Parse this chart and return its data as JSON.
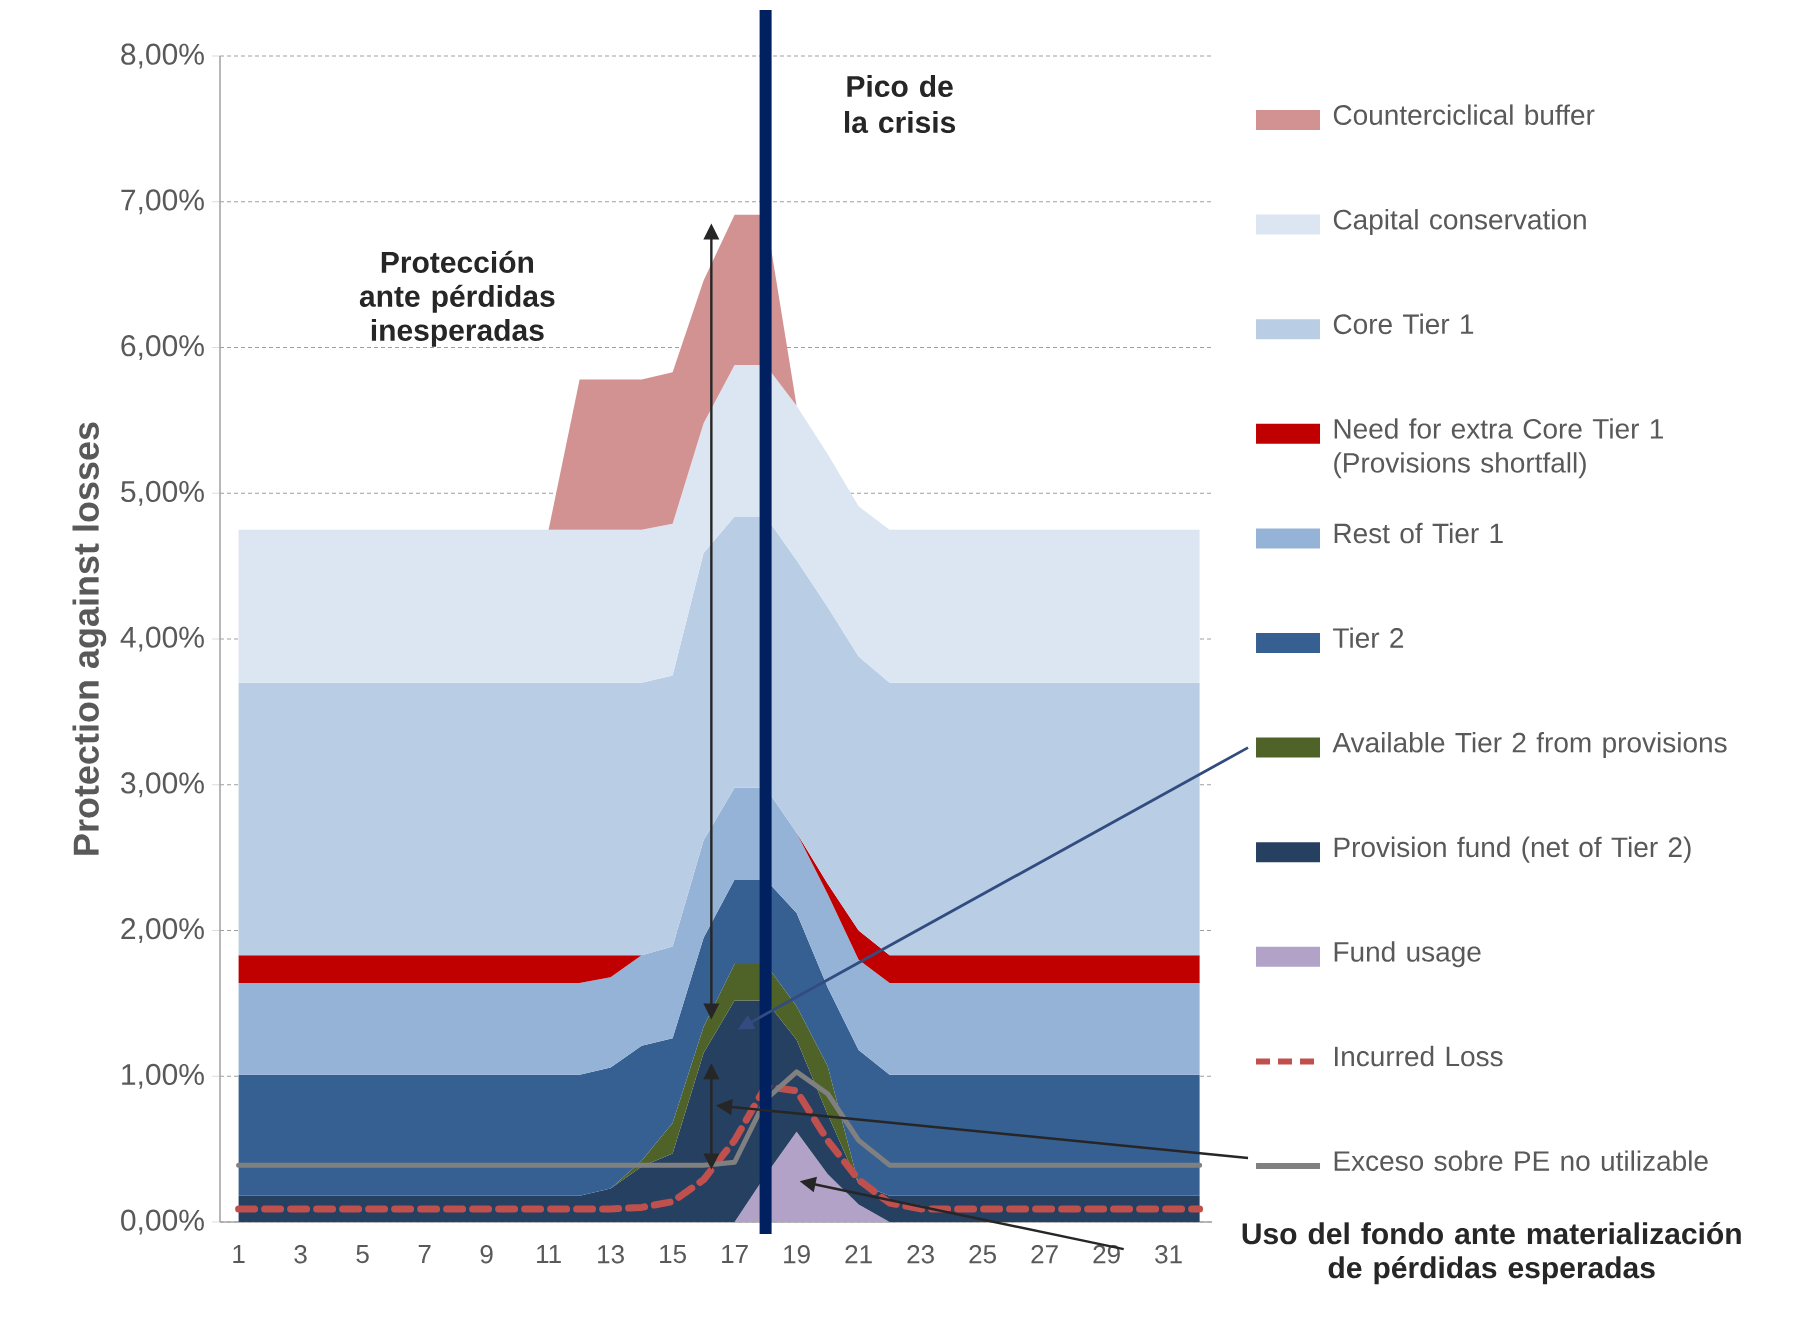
{
  "chart_data": {
    "type": "area",
    "stacked": true,
    "x": [
      1,
      2,
      3,
      4,
      5,
      6,
      7,
      8,
      9,
      10,
      11,
      12,
      13,
      14,
      15,
      16,
      17,
      18,
      19,
      20,
      21,
      22,
      23,
      24,
      25,
      26,
      27,
      28,
      29,
      30,
      31,
      32
    ],
    "series": [
      {
        "name": "Fund usage",
        "color": "#b3a2c7",
        "values": [
          null,
          null,
          null,
          null,
          null,
          null,
          null,
          null,
          null,
          null,
          null,
          null,
          null,
          null,
          null,
          null,
          0,
          0.32,
          0.62,
          0.33,
          0.12,
          0,
          null,
          null,
          null,
          null,
          null,
          null,
          null,
          null,
          null,
          null
        ]
      },
      {
        "name": "Provision fund (net of Tier 2)",
        "color": "#254061",
        "values": [
          0.18,
          0.18,
          0.18,
          0.18,
          0.18,
          0.18,
          0.18,
          0.18,
          0.18,
          0.18,
          0.18,
          0.18,
          0.23,
          0.38,
          0.47,
          1.16,
          1.52,
          1.2,
          0.63,
          0.41,
          0.14,
          0.18,
          0.18,
          0.18,
          0.18,
          0.18,
          0.18,
          0.18,
          0.18,
          0.18,
          0.18,
          0.18
        ]
      },
      {
        "name": "Available Tier 2 from provisions",
        "color": "#4f6228",
        "values": [
          null,
          null,
          null,
          null,
          null,
          null,
          null,
          null,
          null,
          null,
          null,
          null,
          0,
          0.04,
          0.21,
          0.18,
          0.25,
          0.25,
          0.23,
          0.33,
          0,
          null,
          null,
          null,
          null,
          null,
          null,
          null,
          null,
          null,
          null,
          null
        ]
      },
      {
        "name": "Tier 2",
        "color": "#376092",
        "values": [
          0.83,
          0.83,
          0.83,
          0.83,
          0.83,
          0.83,
          0.83,
          0.83,
          0.83,
          0.83,
          0.83,
          0.83,
          0.83,
          0.79,
          0.58,
          0.61,
          0.58,
          0.58,
          0.64,
          0.54,
          0.92,
          0.83,
          0.83,
          0.83,
          0.83,
          0.83,
          0.83,
          0.83,
          0.83,
          0.83,
          0.83,
          0.83
        ]
      },
      {
        "name": "Rest of Tier 1",
        "color": "#95b3d7",
        "values": [
          0.63,
          0.63,
          0.63,
          0.63,
          0.63,
          0.63,
          0.63,
          0.63,
          0.63,
          0.63,
          0.63,
          0.63,
          0.62,
          0.62,
          0.63,
          0.67,
          0.63,
          0.63,
          0.55,
          0.64,
          0.62,
          0.63,
          0.63,
          0.63,
          0.63,
          0.63,
          0.63,
          0.63,
          0.63,
          0.63,
          0.63,
          0.63
        ]
      },
      {
        "name": "Need for extra Core Tier 1 (Provisions shortfall)",
        "color": "#c00000",
        "values": [
          0.19,
          0.19,
          0.19,
          0.19,
          0.19,
          0.19,
          0.19,
          0.19,
          0.19,
          0.19,
          0.19,
          0.19,
          0.15,
          0,
          null,
          null,
          null,
          null,
          0,
          0.07,
          0.2,
          0.19,
          0.19,
          0.19,
          0.19,
          0.19,
          0.19,
          0.19,
          0.19,
          0.19,
          0.19,
          0.19
        ]
      },
      {
        "name": "Core Tier 1",
        "color": "#b9cde5",
        "values": [
          1.87,
          1.87,
          1.87,
          1.87,
          1.87,
          1.87,
          1.87,
          1.87,
          1.87,
          1.87,
          1.87,
          1.87,
          1.87,
          1.87,
          1.86,
          1.97,
          1.86,
          1.86,
          1.87,
          1.9,
          1.88,
          1.87,
          1.87,
          1.87,
          1.87,
          1.87,
          1.87,
          1.87,
          1.87,
          1.87,
          1.87,
          1.87
        ]
      },
      {
        "name": "Capital conservation",
        "color": "#dce6f2",
        "values": [
          1.05,
          1.05,
          1.05,
          1.05,
          1.05,
          1.05,
          1.05,
          1.05,
          1.05,
          1.05,
          1.05,
          1.05,
          1.05,
          1.05,
          1.04,
          0.89,
          1.04,
          1.04,
          1.06,
          1.05,
          1.03,
          1.05,
          1.05,
          1.05,
          1.05,
          1.05,
          1.05,
          1.05,
          1.05,
          1.05,
          1.05,
          1.05
        ]
      },
      {
        "name": "Counterciclical buffer",
        "color": "#d39292",
        "values": [
          null,
          null,
          null,
          null,
          null,
          null,
          null,
          null,
          null,
          null,
          0,
          1.03,
          1.03,
          1.03,
          1.04,
          0.98,
          1.03,
          1.03,
          0,
          null,
          null,
          null,
          null,
          null,
          null,
          null,
          null,
          null,
          null,
          null,
          null,
          null
        ]
      },
      {
        "name": "Incurred Loss",
        "type": "line",
        "line_style": "dashed",
        "color": "#c0504d",
        "values": [
          0.09,
          0.09,
          0.09,
          0.09,
          0.09,
          0.09,
          0.09,
          0.09,
          0.09,
          0.09,
          0.09,
          0.09,
          0.09,
          0.1,
          0.14,
          0.29,
          0.56,
          0.93,
          0.9,
          0.56,
          0.29,
          0.13,
          0.09,
          0.09,
          0.09,
          0.09,
          0.09,
          0.09,
          0.09,
          0.09,
          0.09,
          0.09
        ]
      },
      {
        "name": "Exceso sobre PE no utilizable",
        "type": "line",
        "line_style": "solid",
        "color": "#808080",
        "values": [
          0.39,
          0.39,
          0.39,
          0.39,
          0.39,
          0.39,
          0.39,
          0.39,
          0.39,
          0.39,
          0.39,
          0.39,
          0.39,
          0.39,
          0.39,
          0.39,
          0.41,
          0.84,
          1.03,
          0.88,
          0.56,
          0.39,
          0.39,
          0.39,
          0.39,
          0.39,
          0.39,
          0.39,
          0.39,
          0.39,
          0.39,
          0.39
        ]
      }
    ],
    "ylabel": "Protection against losses",
    "xlim": [
      0.4,
      32.4
    ],
    "xticks": [
      1,
      3,
      5,
      7,
      9,
      11,
      13,
      15,
      17,
      19,
      21,
      23,
      25,
      27,
      29,
      31
    ],
    "ylim": [
      0,
      8
    ],
    "yticks": [
      {
        "value": 0,
        "label": "0,00%"
      },
      {
        "value": 1,
        "label": "1,00%"
      },
      {
        "value": 2,
        "label": "2,00%"
      },
      {
        "value": 3,
        "label": "3,00%"
      },
      {
        "value": 4,
        "label": "4,00%"
      },
      {
        "value": 5,
        "label": "5,00%"
      },
      {
        "value": 6,
        "label": "6,00%"
      },
      {
        "value": 7,
        "label": "7,00%"
      },
      {
        "value": 8,
        "label": "8,00%"
      }
    ],
    "grid": "y",
    "legend": "right",
    "ref_lines": [
      {
        "axis": "x",
        "value": 18,
        "label": "Pico de la crisis",
        "color": "#002060"
      }
    ],
    "annotations": [
      "Protección ante pérdidas inesperadas",
      "Uso del fondo ante materialización de pérdidas esperadas"
    ]
  }
}
